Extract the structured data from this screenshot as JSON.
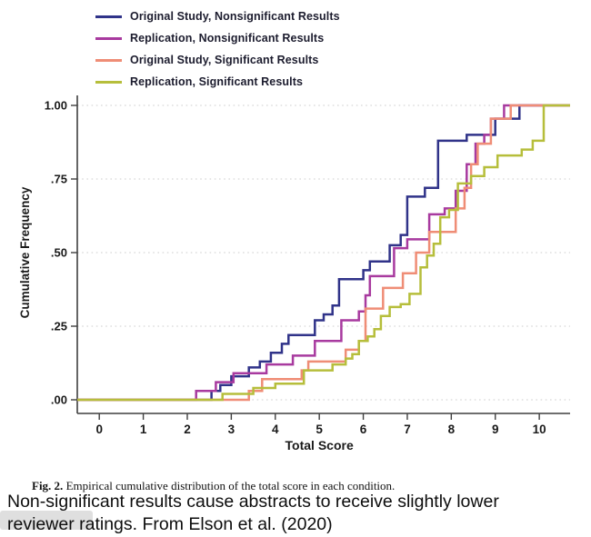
{
  "legend": {
    "items": [
      {
        "label": "Original Study, Nonsignificant Results"
      },
      {
        "label": "Replication, Nonsignificant Results"
      },
      {
        "label": "Original Study, Significant Results"
      },
      {
        "label": "Replication, Significant Results"
      }
    ]
  },
  "caption": {
    "fig_label": "Fig. 2.",
    "text": " Empirical cumulative distribution of the total score in each condition."
  },
  "headline": {
    "line1": "Non-significant results cause abstracts to receive slightly lower",
    "line2": "reviewer ratings. From Elson et al. (2020)"
  },
  "colors": {
    "navy": "#303389",
    "magenta": "#a83a9f",
    "salmon": "#ef8d76",
    "olive": "#b6be3b",
    "axis": "#3f3f3f",
    "grid": "#d8d8d8",
    "text": "#1a1a1a"
  },
  "chart_data": {
    "type": "line",
    "subtype": "ecdf-step",
    "title": "",
    "xlabel": "Total Score",
    "ylabel": "Cumulative Frequency",
    "xlim": [
      -0.5,
      10.7
    ],
    "ylim": [
      0,
      1
    ],
    "xticks": [
      0,
      1,
      2,
      3,
      4,
      5,
      6,
      7,
      8,
      9,
      10
    ],
    "yticks": [
      {
        "v": 0.0,
        "label": ".00"
      },
      {
        "v": 0.25,
        "label": ".25"
      },
      {
        "v": 0.5,
        "label": ".50"
      },
      {
        "v": 0.75,
        "label": ".75"
      },
      {
        "v": 1.0,
        "label": "1.00"
      }
    ],
    "grid": "horizontal-dotted",
    "legend_position": "above-top-left",
    "series": [
      {
        "name": "Original Study, Nonsignificant Results",
        "color": "#303389",
        "steps": [
          [
            2.55,
            0.03
          ],
          [
            2.75,
            0.05
          ],
          [
            3.0,
            0.08
          ],
          [
            3.4,
            0.11
          ],
          [
            3.65,
            0.13
          ],
          [
            3.9,
            0.16
          ],
          [
            4.15,
            0.19
          ],
          [
            4.3,
            0.22
          ],
          [
            4.9,
            0.27
          ],
          [
            5.1,
            0.29
          ],
          [
            5.3,
            0.32
          ],
          [
            5.45,
            0.41
          ],
          [
            6.0,
            0.44
          ],
          [
            6.15,
            0.47
          ],
          [
            6.6,
            0.525
          ],
          [
            6.85,
            0.56
          ],
          [
            7.0,
            0.69
          ],
          [
            7.4,
            0.72
          ],
          [
            7.7,
            0.88
          ],
          [
            8.35,
            0.9
          ],
          [
            9.0,
            0.955
          ],
          [
            9.55,
            1.0
          ]
        ]
      },
      {
        "name": "Replication, Nonsignificant Results",
        "color": "#a83a9f",
        "steps": [
          [
            2.2,
            0.03
          ],
          [
            2.65,
            0.06
          ],
          [
            3.05,
            0.09
          ],
          [
            3.8,
            0.12
          ],
          [
            4.4,
            0.15
          ],
          [
            4.9,
            0.2
          ],
          [
            5.5,
            0.27
          ],
          [
            5.9,
            0.3
          ],
          [
            6.05,
            0.355
          ],
          [
            6.15,
            0.42
          ],
          [
            6.7,
            0.515
          ],
          [
            7.0,
            0.545
          ],
          [
            7.5,
            0.63
          ],
          [
            7.85,
            0.65
          ],
          [
            8.1,
            0.71
          ],
          [
            8.35,
            0.8
          ],
          [
            8.55,
            0.87
          ],
          [
            8.75,
            0.9
          ],
          [
            8.9,
            0.955
          ],
          [
            9.2,
            1.0
          ]
        ]
      },
      {
        "name": "Original Study, Significant Results",
        "color": "#ef8d76",
        "steps": [
          [
            3.4,
            0.03
          ],
          [
            3.7,
            0.07
          ],
          [
            4.6,
            0.1
          ],
          [
            4.75,
            0.13
          ],
          [
            5.6,
            0.17
          ],
          [
            5.9,
            0.2
          ],
          [
            6.05,
            0.31
          ],
          [
            6.45,
            0.38
          ],
          [
            6.9,
            0.43
          ],
          [
            7.2,
            0.5
          ],
          [
            7.5,
            0.57
          ],
          [
            8.1,
            0.65
          ],
          [
            8.3,
            0.72
          ],
          [
            8.45,
            0.8
          ],
          [
            8.6,
            0.87
          ],
          [
            8.9,
            0.955
          ],
          [
            9.35,
            1.0
          ]
        ]
      },
      {
        "name": "Replication, Significant Results",
        "color": "#b6be3b",
        "steps": [
          [
            2.8,
            0.02
          ],
          [
            3.5,
            0.04
          ],
          [
            4.0,
            0.055
          ],
          [
            4.65,
            0.1
          ],
          [
            5.3,
            0.12
          ],
          [
            5.6,
            0.14
          ],
          [
            5.75,
            0.155
          ],
          [
            5.9,
            0.2
          ],
          [
            6.1,
            0.215
          ],
          [
            6.25,
            0.24
          ],
          [
            6.4,
            0.285
          ],
          [
            6.6,
            0.315
          ],
          [
            6.85,
            0.325
          ],
          [
            7.05,
            0.36
          ],
          [
            7.3,
            0.45
          ],
          [
            7.45,
            0.49
          ],
          [
            7.6,
            0.53
          ],
          [
            7.75,
            0.62
          ],
          [
            7.95,
            0.645
          ],
          [
            8.15,
            0.735
          ],
          [
            8.45,
            0.76
          ],
          [
            8.75,
            0.79
          ],
          [
            9.05,
            0.83
          ],
          [
            9.6,
            0.85
          ],
          [
            9.85,
            0.88
          ],
          [
            10.1,
            1.0
          ]
        ]
      }
    ]
  }
}
